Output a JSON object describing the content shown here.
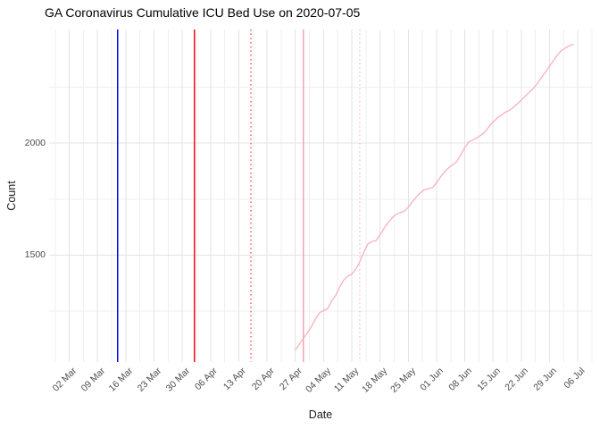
{
  "title": "GA Coronavirus Cumulative ICU Bed Use on 2020-07-05",
  "chart_data": {
    "type": "line",
    "title": "GA Coronavirus Cumulative ICU Bed Use on 2020-07-05",
    "xlabel": "Date",
    "ylabel": "Count",
    "grid": true,
    "legend": "none",
    "xlim_dates": [
      "2020-02-26",
      "2020-07-09"
    ],
    "ylim": [
      1022,
      2508
    ],
    "x_ticks": [
      {
        "label": "02 Mar",
        "date": "2020-03-02"
      },
      {
        "label": "09 Mar",
        "date": "2020-03-09"
      },
      {
        "label": "16 Mar",
        "date": "2020-03-16"
      },
      {
        "label": "23 Mar",
        "date": "2020-03-23"
      },
      {
        "label": "30 Mar",
        "date": "2020-03-30"
      },
      {
        "label": "06 Apr",
        "date": "2020-04-06"
      },
      {
        "label": "13 Apr",
        "date": "2020-04-13"
      },
      {
        "label": "20 Apr",
        "date": "2020-04-20"
      },
      {
        "label": "27 Apr",
        "date": "2020-04-27"
      },
      {
        "label": "04 May",
        "date": "2020-05-04"
      },
      {
        "label": "11 May",
        "date": "2020-05-11"
      },
      {
        "label": "18 May",
        "date": "2020-05-18"
      },
      {
        "label": "25 May",
        "date": "2020-05-25"
      },
      {
        "label": "01 Jun",
        "date": "2020-06-01"
      },
      {
        "label": "08 Jun",
        "date": "2020-06-08"
      },
      {
        "label": "15 Jun",
        "date": "2020-06-15"
      },
      {
        "label": "22 Jun",
        "date": "2020-06-22"
      },
      {
        "label": "29 Jun",
        "date": "2020-06-29"
      },
      {
        "label": "06 Jul",
        "date": "2020-07-06"
      }
    ],
    "y_ticks": [
      {
        "label": "1500",
        "value": 1500
      },
      {
        "label": "2000",
        "value": 2000
      }
    ],
    "y_minor_gridlines": [
      1250,
      1750,
      2250
    ],
    "annotations": [
      {
        "date": "2020-03-14",
        "style": "solid",
        "color": "#0008dd"
      },
      {
        "date": "2020-04-02",
        "style": "solid",
        "color": "#ee1111"
      },
      {
        "date": "2020-04-16",
        "style": "dotted",
        "color": "#ee1111"
      },
      {
        "date": "2020-04-29",
        "style": "solid",
        "color": "#f5a3b2"
      },
      {
        "date": "2020-05-13",
        "style": "dotted",
        "color": "#f5a3b2"
      }
    ],
    "series": [
      {
        "name": "cumulative-icu-beds",
        "color": "#f9b0bf",
        "points": [
          [
            "2020-04-27",
            1075
          ],
          [
            "2020-04-28",
            1102
          ],
          [
            "2020-04-29",
            1128
          ],
          [
            "2020-04-30",
            1152
          ],
          [
            "2020-05-01",
            1180
          ],
          [
            "2020-05-02",
            1214
          ],
          [
            "2020-05-03",
            1242
          ],
          [
            "2020-05-04",
            1252
          ],
          [
            "2020-05-05",
            1260
          ],
          [
            "2020-05-06",
            1294
          ],
          [
            "2020-05-07",
            1320
          ],
          [
            "2020-05-08",
            1358
          ],
          [
            "2020-05-09",
            1388
          ],
          [
            "2020-05-10",
            1406
          ],
          [
            "2020-05-11",
            1414
          ],
          [
            "2020-05-12",
            1438
          ],
          [
            "2020-05-13",
            1470
          ],
          [
            "2020-05-14",
            1514
          ],
          [
            "2020-05-15",
            1550
          ],
          [
            "2020-05-16",
            1560
          ],
          [
            "2020-05-17",
            1565
          ],
          [
            "2020-05-18",
            1590
          ],
          [
            "2020-05-19",
            1620
          ],
          [
            "2020-05-20",
            1645
          ],
          [
            "2020-05-21",
            1666
          ],
          [
            "2020-05-22",
            1682
          ],
          [
            "2020-05-23",
            1690
          ],
          [
            "2020-05-24",
            1696
          ],
          [
            "2020-05-25",
            1714
          ],
          [
            "2020-05-26",
            1738
          ],
          [
            "2020-05-27",
            1760
          ],
          [
            "2020-05-28",
            1778
          ],
          [
            "2020-05-29",
            1792
          ],
          [
            "2020-05-30",
            1797
          ],
          [
            "2020-05-31",
            1801
          ],
          [
            "2020-06-01",
            1824
          ],
          [
            "2020-06-02",
            1850
          ],
          [
            "2020-06-03",
            1872
          ],
          [
            "2020-06-04",
            1890
          ],
          [
            "2020-06-05",
            1903
          ],
          [
            "2020-06-06",
            1918
          ],
          [
            "2020-06-07",
            1948
          ],
          [
            "2020-06-08",
            1980
          ],
          [
            "2020-06-09",
            2006
          ],
          [
            "2020-06-10",
            2014
          ],
          [
            "2020-06-11",
            2024
          ],
          [
            "2020-06-12",
            2036
          ],
          [
            "2020-06-13",
            2050
          ],
          [
            "2020-06-14",
            2074
          ],
          [
            "2020-06-15",
            2094
          ],
          [
            "2020-06-16",
            2112
          ],
          [
            "2020-06-17",
            2124
          ],
          [
            "2020-06-18",
            2138
          ],
          [
            "2020-06-19",
            2146
          ],
          [
            "2020-06-20",
            2160
          ],
          [
            "2020-06-21",
            2176
          ],
          [
            "2020-06-22",
            2192
          ],
          [
            "2020-06-23",
            2210
          ],
          [
            "2020-06-24",
            2228
          ],
          [
            "2020-06-25",
            2246
          ],
          [
            "2020-06-26",
            2268
          ],
          [
            "2020-06-27",
            2294
          ],
          [
            "2020-06-28",
            2318
          ],
          [
            "2020-06-29",
            2344
          ],
          [
            "2020-06-30",
            2370
          ],
          [
            "2020-07-01",
            2396
          ],
          [
            "2020-07-02",
            2414
          ],
          [
            "2020-07-03",
            2426
          ],
          [
            "2020-07-04",
            2436
          ],
          [
            "2020-07-05",
            2443
          ]
        ]
      }
    ],
    "colors": {
      "major_gridline": "#e3e3e3",
      "minor_gridline": "#efefef",
      "tick_text": "#4d4d4d",
      "axis_title_text": "#1a1a1a",
      "title_text": "#000000",
      "background": "#ffffff"
    }
  }
}
